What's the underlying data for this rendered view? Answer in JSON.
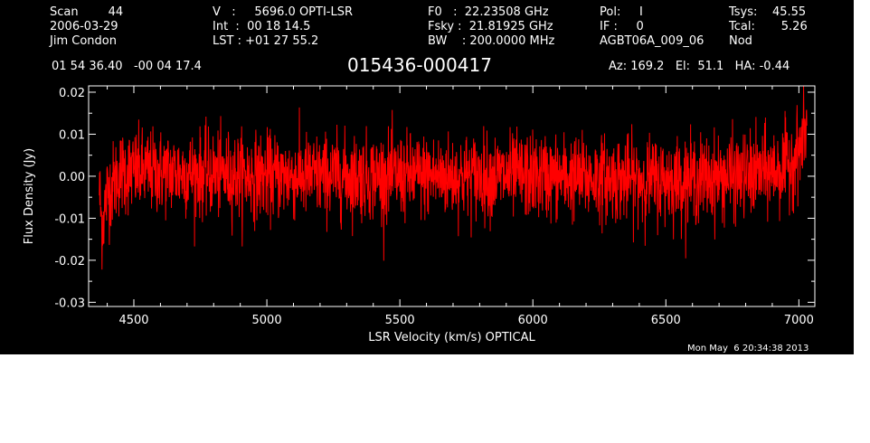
{
  "header": {
    "scan": "Scan        44",
    "date": "2006-03-29",
    "observer": "Jim Condon",
    "velocity": "V   :     5696.0 OPTI-LSR",
    "int": "Int  :  00 18 14.5",
    "lst": "LST : +01 27 55.2",
    "f0": "F0   :  22.23508 GHz",
    "fsky": "Fsky :  21.81925 GHz",
    "bw": "BW    : 200.0000 MHz",
    "pol": "Pol:     I",
    "if": "IF :     0",
    "project": "AGBT06A_009_06",
    "tsys": "Tsys:    45.55",
    "tcal": "Tcal:       5.26",
    "mode": "Nod",
    "coords": "01 54 36.40   -00 04 17.4",
    "source": "015436-000417",
    "azel": "Az: 169.2   El:  51.1   HA: -0.44"
  },
  "footer": {
    "timestamp": "Mon May  6 20:34:38 2013"
  },
  "colors": {
    "background": "#000000",
    "axes": "#ffffff",
    "series": "#ff0000"
  },
  "chart_data": {
    "type": "line",
    "xlabel": "LSR Velocity (km/s) OPTICAL",
    "ylabel": "Flux Density (Jy)",
    "xlim": [
      4330,
      7060
    ],
    "ylim": [
      -0.031,
      0.0215
    ],
    "x_ticks": [
      4500,
      5000,
      5500,
      6000,
      6500,
      7000
    ],
    "x_tick_labels": [
      "4500",
      "5000",
      "5500",
      "6000",
      "6500",
      "7000"
    ],
    "y_ticks": [
      -0.03,
      -0.02,
      -0.01,
      0.0,
      0.01,
      0.02
    ],
    "y_tick_labels": [
      "-0.03",
      "-0.02",
      "-0.01",
      "0.00",
      "0.01",
      "0.02"
    ],
    "grid": false,
    "series": [
      {
        "x_start": 4370,
        "x_end": 7030,
        "noise_rms_jy": 0.005,
        "envelope": [
          [
            4370,
            -0.003
          ],
          [
            4380,
            -0.012
          ],
          [
            4400,
            -0.004
          ],
          [
            4450,
            0.001
          ],
          [
            4600,
            0.001
          ],
          [
            5000,
            0.0
          ],
          [
            5500,
            0.0
          ],
          [
            6000,
            0.0
          ],
          [
            6500,
            -0.001
          ],
          [
            6800,
            0.0
          ],
          [
            6950,
            0.002
          ],
          [
            7000,
            0.006
          ],
          [
            7030,
            0.012
          ]
        ]
      }
    ]
  }
}
